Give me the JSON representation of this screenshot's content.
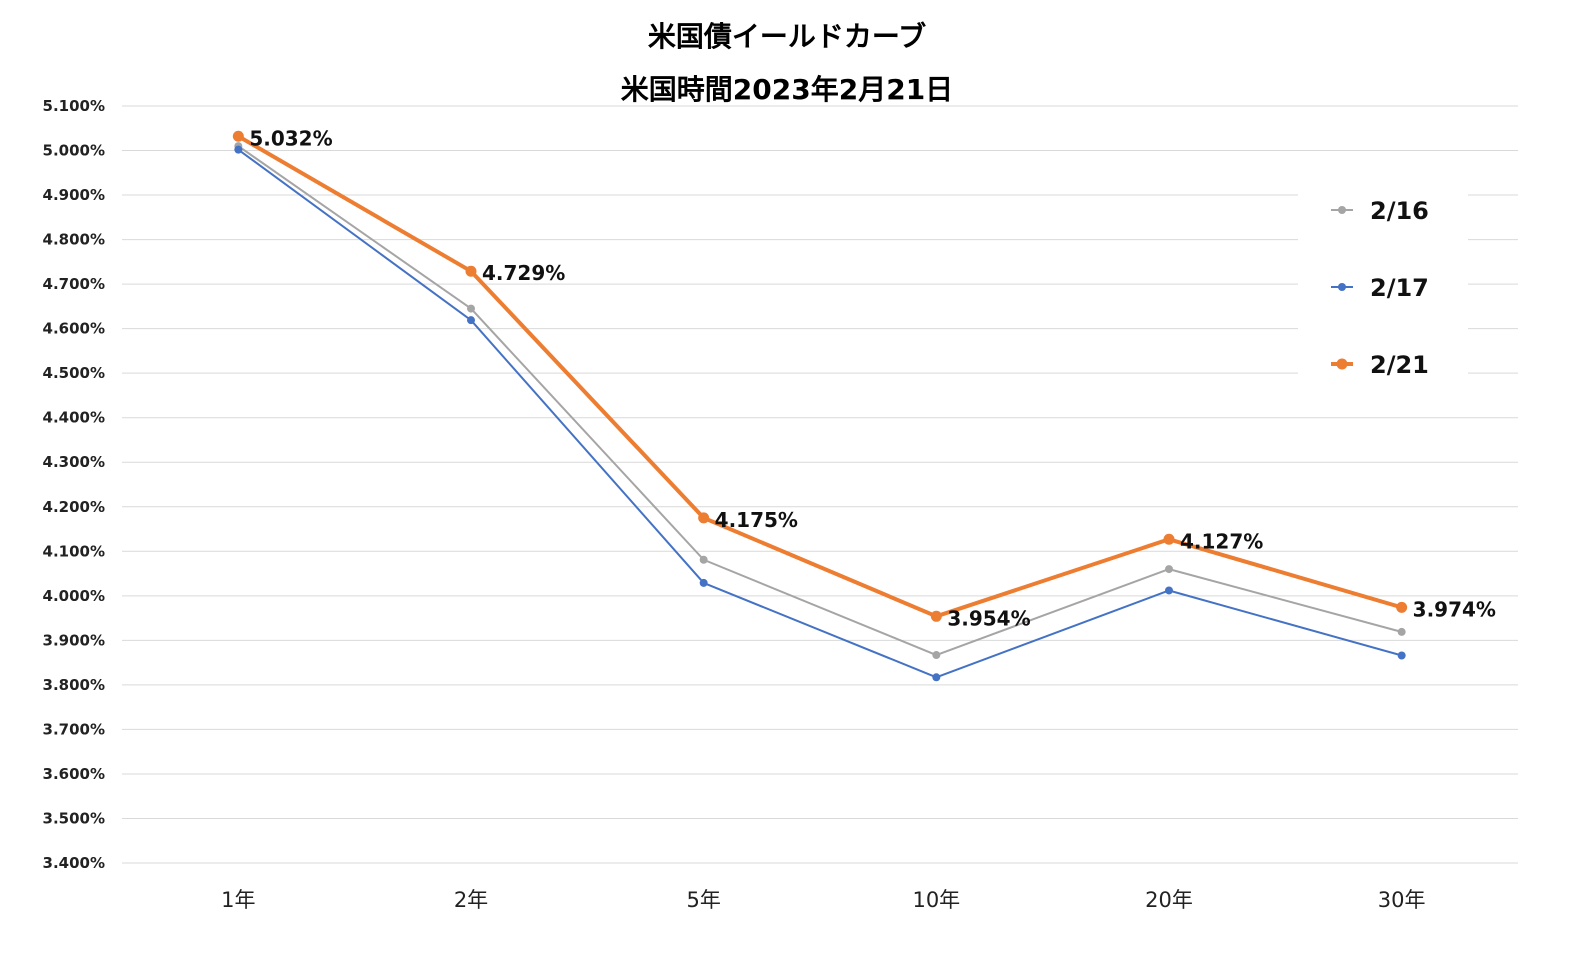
{
  "chart_data": {
    "type": "line",
    "title": "米国債イールドカーブ",
    "subtitle": "米国時間2023年2月21日",
    "categories": [
      "1年",
      "2年",
      "5年",
      "10年",
      "20年",
      "30年"
    ],
    "ylim": [
      3.4,
      5.1
    ],
    "ytick_step": 0.1,
    "ytick_labels": [
      "3.400%",
      "3.500%",
      "3.600%",
      "3.700%",
      "3.800%",
      "3.900%",
      "4.000%",
      "4.100%",
      "4.200%",
      "4.300%",
      "4.400%",
      "4.500%",
      "4.600%",
      "4.700%",
      "4.800%",
      "4.900%",
      "5.000%",
      "5.100%"
    ],
    "grid": true,
    "legend_position": "right",
    "series": [
      {
        "name": "2/16",
        "color": "#a5a5a5",
        "values": [
          5.01,
          4.645,
          4.081,
          3.867,
          4.06,
          3.919
        ],
        "labels": []
      },
      {
        "name": "2/17",
        "color": "#4472c4",
        "values": [
          5.002,
          4.619,
          4.029,
          3.817,
          4.012,
          3.866
        ],
        "labels": []
      },
      {
        "name": "2/21",
        "color": "#ed7d31",
        "values": [
          5.032,
          4.729,
          4.175,
          3.954,
          4.127,
          3.974
        ],
        "labels": [
          "5.032%",
          "4.729%",
          "4.175%",
          "3.954%",
          "4.127%",
          "3.974%"
        ]
      }
    ]
  }
}
